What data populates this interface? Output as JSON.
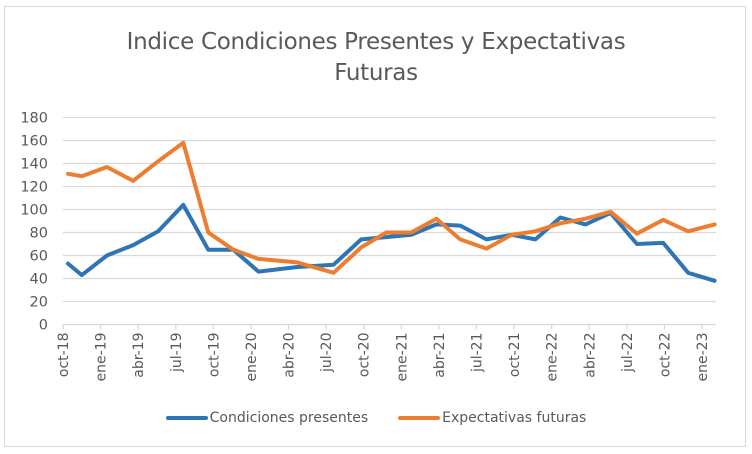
{
  "chart_data": {
    "type": "line",
    "title": "Indice Condiciones Presentes y Expectativas Futuras",
    "title_lines": [
      "Indice Condiciones Presentes y Expectativas",
      "Futuras"
    ],
    "xlabel": "",
    "ylabel": "",
    "ylim": [
      0,
      180
    ],
    "yticks": [
      0,
      20,
      40,
      60,
      80,
      100,
      120,
      140,
      160,
      180
    ],
    "grid": true,
    "legend_position": "bottom",
    "x_unit": "months since oct-18",
    "xlim": [
      0,
      52
    ],
    "x_tick_labels": [
      "oct-18",
      "ene-19",
      "abr-19",
      "jul-19",
      "oct-19",
      "ene-20",
      "abr-20",
      "jul-20",
      "oct-20",
      "ene-21",
      "abr-21",
      "jul-21",
      "oct-21",
      "ene-22",
      "abr-22",
      "jul-22",
      "oct-22",
      "ene-23"
    ],
    "x_tick_positions": [
      0,
      3,
      6,
      9,
      12,
      15,
      18,
      21,
      24,
      27,
      30,
      33,
      36,
      39,
      42,
      45,
      48,
      51
    ],
    "x": [
      0.4,
      1.5,
      3.5,
      5.6,
      7.6,
      9.6,
      11.6,
      13.6,
      15.6,
      18.7,
      21.6,
      23.8,
      25.8,
      27.8,
      29.8,
      31.7,
      33.8,
      35.8,
      37.7,
      39.7,
      41.7,
      43.7,
      45.8,
      47.9,
      49.9,
      52.0
    ],
    "series": [
      {
        "name": "Condiciones presentes",
        "color": "#2E75B6",
        "values": [
          53,
          43,
          60,
          69,
          81,
          104,
          65,
          65,
          46,
          50,
          52,
          74,
          76,
          78,
          87,
          86,
          74,
          78,
          74,
          93,
          87,
          97,
          70,
          71,
          45,
          38
        ]
      },
      {
        "name": "Expectativas futuras",
        "color": "#ED7D31",
        "values": [
          131,
          129,
          137,
          125,
          142,
          158,
          80,
          65,
          57,
          54,
          45,
          67,
          80,
          80,
          92,
          74,
          66,
          78,
          81,
          88,
          92,
          98,
          79,
          91,
          81,
          87
        ]
      }
    ]
  },
  "legend": {
    "items": [
      {
        "label": "Condiciones presentes",
        "color": "#2E75B6"
      },
      {
        "label": "Expectativas futuras",
        "color": "#ED7D31"
      }
    ]
  }
}
